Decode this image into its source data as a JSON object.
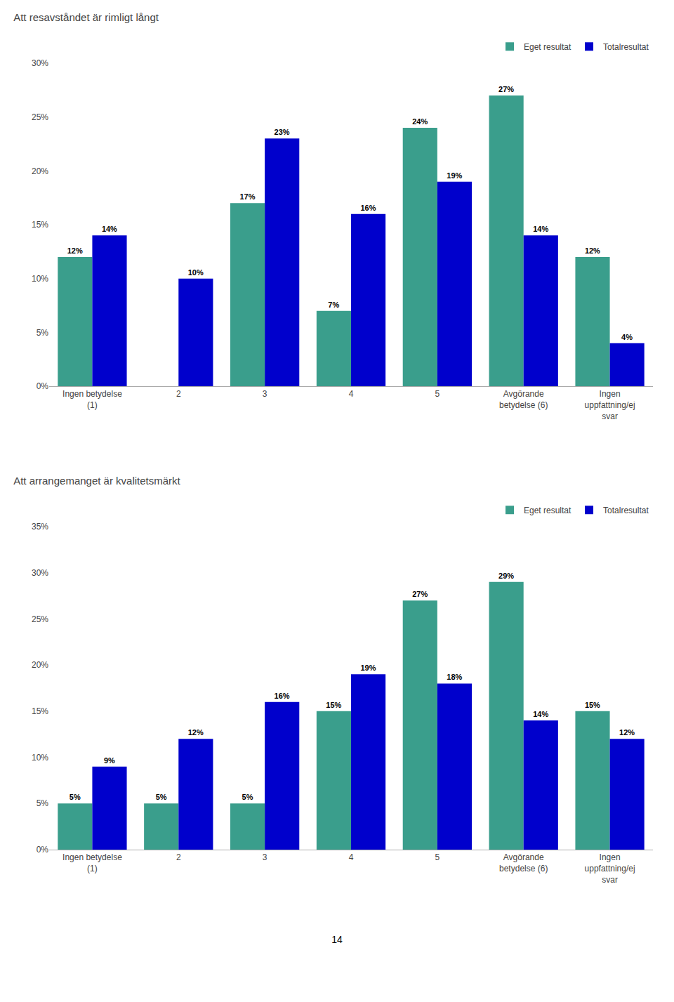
{
  "chart_data": [
    {
      "type": "bar",
      "title": "Att resavståndet är rimligt långt",
      "categories": [
        "Ingen betydelse\n(1)",
        "2",
        "3",
        "4",
        "5",
        "Avgörande\nbetydelse (6)",
        "Ingen\nuppfattning/ej\nsvar"
      ],
      "series": [
        {
          "name": "Eget resultat",
          "color": "#3a9e8c",
          "values": [
            12,
            0,
            17,
            7,
            24,
            27,
            12
          ],
          "value_labels": [
            "12%",
            null,
            "17%",
            "7%",
            "24%",
            "27%",
            "12%"
          ]
        },
        {
          "name": "Totalresultat",
          "color": "#0000cc",
          "values": [
            14,
            10,
            23,
            16,
            19,
            14,
            4
          ],
          "value_labels": [
            "14%",
            "10%",
            "23%",
            "16%",
            "19%",
            "14%",
            "4%"
          ]
        }
      ],
      "ylim": [
        0,
        30
      ],
      "yticks": [
        {
          "value": 0,
          "label": "0%"
        },
        {
          "value": 5,
          "label": "5%"
        },
        {
          "value": 10,
          "label": "10%"
        },
        {
          "value": 15,
          "label": "15%"
        },
        {
          "value": 20,
          "label": "20%"
        },
        {
          "value": 25,
          "label": "25%"
        },
        {
          "value": 30,
          "label": "30%"
        }
      ],
      "grid": false,
      "legend": "upper right",
      "data_labels": true
    },
    {
      "type": "bar",
      "title": "Att arrangemanget är kvalitetsmärkt",
      "categories": [
        "Ingen betydelse\n(1)",
        "2",
        "3",
        "4",
        "5",
        "Avgörande\nbetydelse (6)",
        "Ingen\nuppfattning/ej\nsvar"
      ],
      "series": [
        {
          "name": "Eget resultat",
          "color": "#3a9e8c",
          "values": [
            5,
            5,
            5,
            15,
            27,
            29,
            15
          ],
          "value_labels": [
            "5%",
            "5%",
            "5%",
            "15%",
            "27%",
            "29%",
            "15%"
          ]
        },
        {
          "name": "Totalresultat",
          "color": "#0000cc",
          "values": [
            9,
            12,
            16,
            19,
            18,
            14,
            12
          ],
          "value_labels": [
            "9%",
            "12%",
            "16%",
            "19%",
            "18%",
            "14%",
            "12%"
          ]
        }
      ],
      "ylim": [
        0,
        35
      ],
      "yticks": [
        {
          "value": 0,
          "label": "0%"
        },
        {
          "value": 5,
          "label": "5%"
        },
        {
          "value": 10,
          "label": "10%"
        },
        {
          "value": 15,
          "label": "15%"
        },
        {
          "value": 20,
          "label": "20%"
        },
        {
          "value": 25,
          "label": "25%"
        },
        {
          "value": 30,
          "label": "30%"
        },
        {
          "value": 35,
          "label": "35%"
        }
      ],
      "grid": false,
      "legend": "upper right",
      "data_labels": true,
      "annotations": [
        "14"
      ]
    }
  ]
}
